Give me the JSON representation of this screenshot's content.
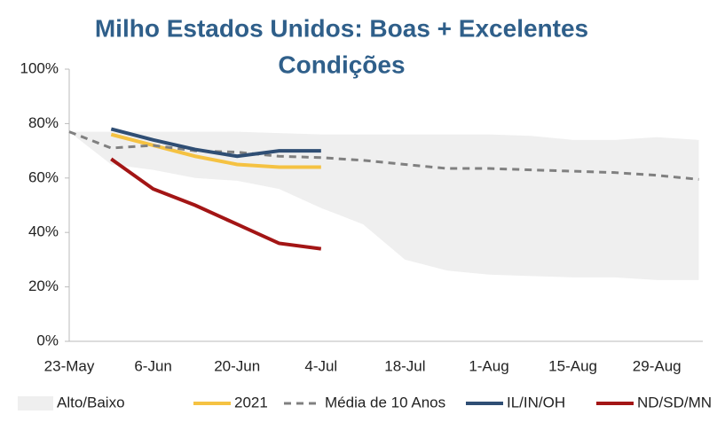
{
  "chart_data": {
    "type": "line",
    "title": [
      "Milho Estados Unidos: Boas + Excelentes",
      "Condições"
    ],
    "categories": [
      "23-May",
      null,
      "6-Jun",
      null,
      "20-Jun",
      null,
      "4-Jul",
      null,
      "18-Jul",
      null,
      "1-Aug",
      null,
      "15-Aug",
      null,
      "29-Aug",
      null
    ],
    "ylim": [
      0,
      100
    ],
    "yticks": [
      {
        "value": 0,
        "label": "0%"
      },
      {
        "value": 20,
        "label": "20%"
      },
      {
        "value": 40,
        "label": "40%"
      },
      {
        "value": 60,
        "label": "60%"
      },
      {
        "value": 80,
        "label": "80%"
      },
      {
        "value": 100,
        "label": "100%"
      }
    ],
    "band": {
      "name": "Alto/Baixo",
      "color": "#efefef",
      "high": [
        77,
        77,
        77,
        77,
        77,
        76.5,
        76,
        76,
        76,
        76,
        76,
        75.5,
        74,
        74,
        75,
        74
      ],
      "low": [
        77,
        65,
        63,
        60,
        59,
        56,
        49,
        43,
        30,
        26,
        24.5,
        24,
        23.5,
        23.5,
        22.5,
        22.5
      ]
    },
    "series": [
      {
        "name": "2021",
        "color": "#f5c242",
        "dash": false,
        "values": [
          null,
          76,
          72,
          68,
          65,
          64,
          64,
          null,
          null,
          null,
          null,
          null,
          null,
          null,
          null,
          null
        ]
      },
      {
        "name": "Média de 10 Anos",
        "color": "#808080",
        "dash": true,
        "values": [
          77,
          71,
          72,
          70,
          69.5,
          68,
          67.5,
          66.5,
          65,
          63.5,
          63.5,
          63,
          62.5,
          62,
          61,
          59.5
        ]
      },
      {
        "name": "IL/IN/OH",
        "color": "#2f4e74",
        "dash": false,
        "values": [
          null,
          78,
          74,
          70.5,
          68,
          70,
          70,
          null,
          null,
          null,
          null,
          null,
          null,
          null,
          null,
          null
        ]
      },
      {
        "name": "ND/SD/MN",
        "color": "#a31515",
        "dash": false,
        "values": [
          null,
          67,
          56,
          50,
          43,
          36,
          34,
          null,
          null,
          null,
          null,
          null,
          null,
          null,
          null,
          null
        ]
      }
    ]
  }
}
